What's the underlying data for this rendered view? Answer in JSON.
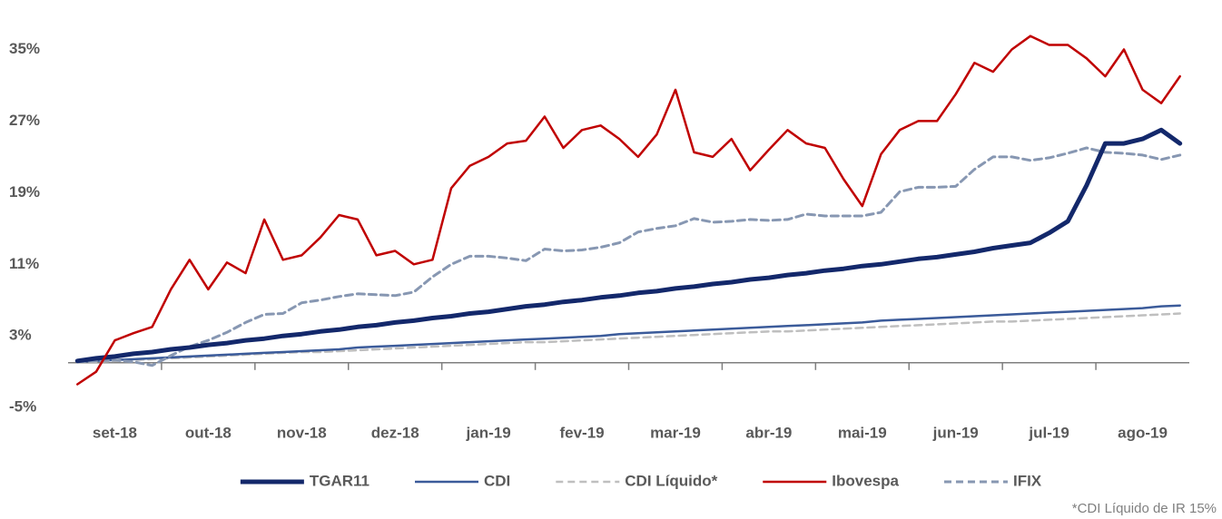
{
  "chart_data": {
    "type": "line",
    "categories": [
      null,
      null,
      "set-18",
      null,
      null,
      null,
      null,
      "out-18",
      null,
      null,
      null,
      null,
      "nov-18",
      null,
      null,
      null,
      null,
      "dez-18",
      null,
      null,
      null,
      null,
      "jan-19",
      null,
      null,
      null,
      null,
      "fev-19",
      null,
      null,
      null,
      null,
      "mar-19",
      null,
      null,
      null,
      null,
      "abr-19",
      null,
      null,
      null,
      null,
      "mai-19",
      null,
      null,
      null,
      null,
      "jun-19",
      null,
      null,
      null,
      null,
      "jul-19",
      null,
      null,
      null,
      null,
      "ago-19",
      null,
      null
    ],
    "series": [
      {
        "name": "TGAR11",
        "color": "#13286b",
        "line_width": 5,
        "dash": false,
        "values": [
          0.2,
          0.5,
          0.7,
          1.0,
          1.2,
          1.5,
          1.7,
          2.0,
          2.2,
          2.5,
          2.7,
          3.0,
          3.2,
          3.5,
          3.7,
          4.0,
          4.2,
          4.5,
          4.7,
          5.0,
          5.2,
          5.5,
          5.7,
          6.0,
          6.3,
          6.5,
          6.8,
          7.0,
          7.3,
          7.5,
          7.8,
          8.0,
          8.3,
          8.5,
          8.8,
          9.0,
          9.3,
          9.5,
          9.8,
          10.0,
          10.3,
          10.5,
          10.8,
          11.0,
          11.3,
          11.6,
          11.8,
          12.1,
          12.4,
          12.8,
          13.1,
          13.4,
          14.5,
          15.8,
          19.8,
          24.5,
          24.5,
          25.0,
          26.0,
          24.5
        ]
      },
      {
        "name": "CDI",
        "color": "#3b5b9a",
        "line_width": 2.5,
        "dash": false,
        "values": [
          0.1,
          0.2,
          0.3,
          0.4,
          0.5,
          0.6,
          0.7,
          0.8,
          0.9,
          1.0,
          1.1,
          1.2,
          1.3,
          1.4,
          1.5,
          1.7,
          1.8,
          1.9,
          2.0,
          2.1,
          2.2,
          2.3,
          2.4,
          2.5,
          2.6,
          2.7,
          2.8,
          2.9,
          3.0,
          3.2,
          3.3,
          3.4,
          3.5,
          3.6,
          3.7,
          3.8,
          3.9,
          4.0,
          4.1,
          4.2,
          4.3,
          4.4,
          4.5,
          4.7,
          4.8,
          4.9,
          5.0,
          5.1,
          5.2,
          5.3,
          5.4,
          5.5,
          5.6,
          5.7,
          5.8,
          5.9,
          6.0,
          6.1,
          6.3,
          6.4
        ]
      },
      {
        "name": "CDI Líquido*",
        "color": "#bfbfbf",
        "line_width": 2.5,
        "dash": true,
        "values": [
          0.1,
          0.1,
          0.2,
          0.3,
          0.4,
          0.5,
          0.6,
          0.7,
          0.8,
          0.9,
          1.0,
          1.1,
          1.2,
          1.2,
          1.3,
          1.4,
          1.5,
          1.6,
          1.7,
          1.8,
          1.9,
          2.0,
          2.1,
          2.2,
          2.3,
          2.3,
          2.4,
          2.5,
          2.6,
          2.7,
          2.8,
          2.9,
          3.0,
          3.1,
          3.2,
          3.3,
          3.4,
          3.5,
          3.5,
          3.6,
          3.7,
          3.8,
          3.9,
          4.0,
          4.1,
          4.2,
          4.3,
          4.4,
          4.5,
          4.6,
          4.6,
          4.7,
          4.8,
          4.9,
          5.0,
          5.1,
          5.2,
          5.3,
          5.4,
          5.5
        ]
      },
      {
        "name": "Ibovespa",
        "color": "#c00000",
        "line_width": 2.5,
        "dash": false,
        "values": [
          -2.4,
          -1.0,
          2.5,
          3.3,
          4.0,
          8.2,
          11.5,
          8.2,
          11.2,
          10.0,
          16.0,
          11.5,
          12.0,
          14.0,
          16.5,
          16.0,
          12.0,
          12.5,
          11.0,
          11.5,
          19.5,
          22.0,
          23.0,
          24.5,
          24.8,
          27.5,
          24.0,
          26.0,
          26.5,
          25.0,
          23.0,
          25.5,
          30.5,
          23.5,
          23.0,
          25.0,
          21.5,
          23.8,
          26.0,
          24.5,
          24.0,
          20.5,
          17.5,
          23.3,
          26.0,
          27.0,
          27.0,
          30.0,
          33.5,
          32.5,
          35.0,
          36.5,
          35.5,
          35.5,
          34.0,
          32.0,
          35.0,
          30.5,
          29.0,
          32.0
        ]
      },
      {
        "name": "IFIX",
        "color": "#8797b2",
        "line_width": 3,
        "dash": true,
        "values": [
          0.1,
          0.2,
          0.3,
          0.1,
          -0.3,
          0.8,
          1.8,
          2.5,
          3.4,
          4.5,
          5.4,
          5.5,
          6.7,
          7.0,
          7.4,
          7.7,
          7.6,
          7.5,
          7.9,
          9.6,
          11.0,
          11.9,
          11.9,
          11.7,
          11.4,
          12.7,
          12.5,
          12.6,
          12.9,
          13.4,
          14.6,
          15.0,
          15.3,
          16.1,
          15.7,
          15.8,
          16.0,
          15.9,
          16.0,
          16.6,
          16.4,
          16.4,
          16.4,
          16.8,
          19.1,
          19.6,
          19.6,
          19.7,
          21.6,
          23.0,
          23.0,
          22.6,
          22.9,
          23.4,
          24.0,
          23.5,
          23.4,
          23.2,
          22.7,
          23.2
        ]
      }
    ],
    "ylim": [
      -6,
      39
    ],
    "yticks": [
      {
        "value": 35,
        "label": "35%"
      },
      {
        "value": 27,
        "label": "27%"
      },
      {
        "value": 19,
        "label": "19%"
      },
      {
        "value": 11,
        "label": "11%"
      },
      {
        "value": 3,
        "label": "3%"
      },
      {
        "value": -5,
        "label": "-5%"
      }
    ],
    "grid": false,
    "legend": "bottom",
    "footnote": "*CDI Líquido de IR 15%"
  }
}
